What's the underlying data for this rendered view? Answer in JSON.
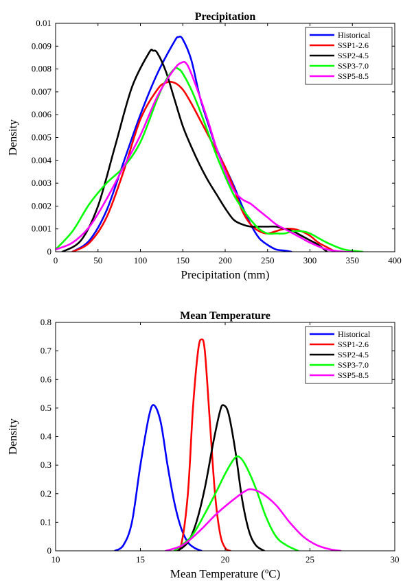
{
  "chart_data": [
    {
      "type": "line",
      "title": "Precipitation",
      "xlabel": "Precipitation (mm)",
      "ylabel": "Density",
      "xlim": [
        0,
        400
      ],
      "ylim": [
        0,
        0.01
      ],
      "xticks": [
        0,
        50,
        100,
        150,
        200,
        250,
        300,
        350,
        400
      ],
      "yticks": [
        0,
        0.001,
        0.002,
        0.003,
        0.004,
        0.005,
        0.006,
        0.007,
        0.008,
        0.009,
        0.01
      ],
      "xtick_labels": [
        "0",
        "50",
        "100",
        "150",
        "200",
        "250",
        "300",
        "350",
        "400"
      ],
      "ytick_labels": [
        "0",
        "0.001",
        "0.002",
        "0.003",
        "0.004",
        "0.005",
        "0.006",
        "0.007",
        "0.008",
        "0.009",
        "0.01"
      ],
      "legend": "top-right",
      "series": [
        {
          "name": "Historical",
          "color": "#0000ff",
          "x": [
            20,
            40,
            60,
            80,
            100,
            120,
            140,
            145,
            150,
            160,
            170,
            180,
            190,
            200,
            210,
            220,
            230,
            240,
            250,
            260,
            270,
            278
          ],
          "y": [
            0,
            0.0005,
            0.0018,
            0.0039,
            0.006,
            0.0078,
            0.0092,
            0.0094,
            0.0093,
            0.0084,
            0.0068,
            0.0056,
            0.0045,
            0.0037,
            0.0029,
            0.002,
            0.0012,
            0.0006,
            0.0003,
            0.0001,
            5e-05,
            0
          ]
        },
        {
          "name": "SSP1-2.6",
          "color": "#ff0000",
          "x": [
            20,
            40,
            60,
            80,
            100,
            120,
            130,
            140,
            150,
            160,
            170,
            180,
            190,
            200,
            210,
            220,
            230,
            240,
            250,
            260,
            270,
            280,
            290,
            300,
            310,
            320,
            330
          ],
          "y": [
            0,
            0.0004,
            0.0015,
            0.0035,
            0.0058,
            0.0071,
            0.0074,
            0.0074,
            0.0071,
            0.0065,
            0.0058,
            0.0051,
            0.0044,
            0.0037,
            0.0028,
            0.0018,
            0.0012,
            0.0009,
            0.0008,
            0.0009,
            0.001,
            0.001,
            0.0009,
            0.0007,
            0.0004,
            0.0002,
            0
          ]
        },
        {
          "name": "SSP2-4.5",
          "color": "#000000",
          "x": [
            8,
            30,
            50,
            70,
            90,
            110,
            115,
            120,
            130,
            140,
            150,
            160,
            170,
            180,
            190,
            200,
            210,
            220,
            230,
            240,
            250,
            260,
            270,
            280,
            290,
            300,
            310,
            320
          ],
          "y": [
            0,
            0.0005,
            0.002,
            0.0046,
            0.0072,
            0.0087,
            0.0088,
            0.0087,
            0.0079,
            0.0067,
            0.0055,
            0.0046,
            0.0038,
            0.0031,
            0.0025,
            0.0019,
            0.0014,
            0.0012,
            0.0011,
            0.0011,
            0.0011,
            0.0011,
            0.001,
            0.0009,
            0.0007,
            0.0005,
            0.0003,
            0
          ]
        },
        {
          "name": "SSP3-7.0",
          "color": "#00ff00",
          "x": [
            0,
            20,
            40,
            60,
            80,
            100,
            120,
            130,
            140,
            145,
            150,
            160,
            170,
            180,
            190,
            200,
            210,
            220,
            230,
            240,
            250,
            260,
            270,
            280,
            290,
            300,
            320,
            340,
            362
          ],
          "y": [
            0.0001,
            0.0009,
            0.0021,
            0.003,
            0.0037,
            0.0048,
            0.0067,
            0.0075,
            0.008,
            0.008,
            0.0078,
            0.0071,
            0.0062,
            0.0052,
            0.0042,
            0.0033,
            0.0025,
            0.0019,
            0.0014,
            0.001,
            0.0008,
            0.0008,
            0.0008,
            0.0009,
            0.0009,
            0.0008,
            0.0004,
            0.0001,
            0
          ]
        },
        {
          "name": "SSP5-8.5",
          "color": "#ff00ff",
          "x": [
            0,
            20,
            40,
            60,
            80,
            100,
            120,
            140,
            150,
            155,
            160,
            170,
            180,
            190,
            200,
            210,
            220,
            230,
            240,
            250,
            260,
            270,
            280,
            290,
            300,
            320,
            340,
            350
          ],
          "y": [
            0.0001,
            0.0004,
            0.0011,
            0.0023,
            0.0037,
            0.0051,
            0.0068,
            0.008,
            0.0083,
            0.0082,
            0.0078,
            0.0068,
            0.0057,
            0.0045,
            0.0035,
            0.0027,
            0.0023,
            0.0021,
            0.0018,
            0.0015,
            0.0012,
            0.001,
            0.0008,
            0.0006,
            0.0004,
            0.0001,
            0,
            0
          ]
        }
      ]
    },
    {
      "type": "line",
      "title": "Mean Temperature",
      "xlabel": "Mean Temperature (ºC)",
      "ylabel": "Density",
      "xlim": [
        10,
        30
      ],
      "ylim": [
        0,
        0.8
      ],
      "xticks": [
        10,
        15,
        20,
        25,
        30
      ],
      "yticks": [
        0,
        0.1,
        0.2,
        0.3,
        0.4,
        0.5,
        0.6,
        0.7,
        0.8
      ],
      "xtick_labels": [
        "10",
        "15",
        "20",
        "25",
        "30"
      ],
      "ytick_labels": [
        "0",
        "0.1",
        "0.2",
        "0.3",
        "0.4",
        "0.5",
        "0.6",
        "0.7",
        "0.8"
      ],
      "legend": "top-right",
      "series": [
        {
          "name": "Historical",
          "color": "#0000ff",
          "x": [
            13.5,
            14,
            14.5,
            15,
            15.5,
            15.8,
            16.2,
            16.6,
            17,
            17.4,
            17.8,
            18.2,
            18.6
          ],
          "y": [
            0,
            0.02,
            0.1,
            0.3,
            0.47,
            0.51,
            0.45,
            0.3,
            0.17,
            0.08,
            0.03,
            0.01,
            0
          ]
        },
        {
          "name": "SSP1-2.6",
          "color": "#ff0000",
          "x": [
            17,
            17.4,
            17.8,
            18.1,
            18.4,
            18.6,
            18.8,
            19.1,
            19.4,
            19.7,
            20,
            20.3
          ],
          "y": [
            0,
            0.02,
            0.2,
            0.5,
            0.7,
            0.74,
            0.7,
            0.45,
            0.2,
            0.06,
            0.01,
            0
          ]
        },
        {
          "name": "SSP2-4.5",
          "color": "#000000",
          "x": [
            17.2,
            17.8,
            18.3,
            18.8,
            19.3,
            19.7,
            19.9,
            20.2,
            20.6,
            21,
            21.4,
            21.8,
            22.3
          ],
          "y": [
            0,
            0.03,
            0.1,
            0.22,
            0.38,
            0.49,
            0.51,
            0.48,
            0.35,
            0.18,
            0.07,
            0.02,
            0
          ]
        },
        {
          "name": "SSP3-7.0",
          "color": "#00ff00",
          "x": [
            17,
            18,
            18.8,
            19.5,
            20,
            20.5,
            20.8,
            21.2,
            21.8,
            22.4,
            23,
            23.6,
            24.3
          ],
          "y": [
            0,
            0.05,
            0.13,
            0.21,
            0.27,
            0.32,
            0.33,
            0.3,
            0.22,
            0.12,
            0.05,
            0.02,
            0
          ]
        },
        {
          "name": "SSP5-8.5",
          "color": "#ff00ff",
          "x": [
            16.5,
            17.5,
            18.5,
            19.5,
            20.5,
            21.2,
            21.6,
            22.2,
            23,
            23.8,
            24.6,
            25.4,
            26.2,
            26.8
          ],
          "y": [
            0,
            0.02,
            0.07,
            0.13,
            0.18,
            0.21,
            0.215,
            0.2,
            0.16,
            0.1,
            0.05,
            0.02,
            0.005,
            0
          ]
        }
      ]
    }
  ]
}
